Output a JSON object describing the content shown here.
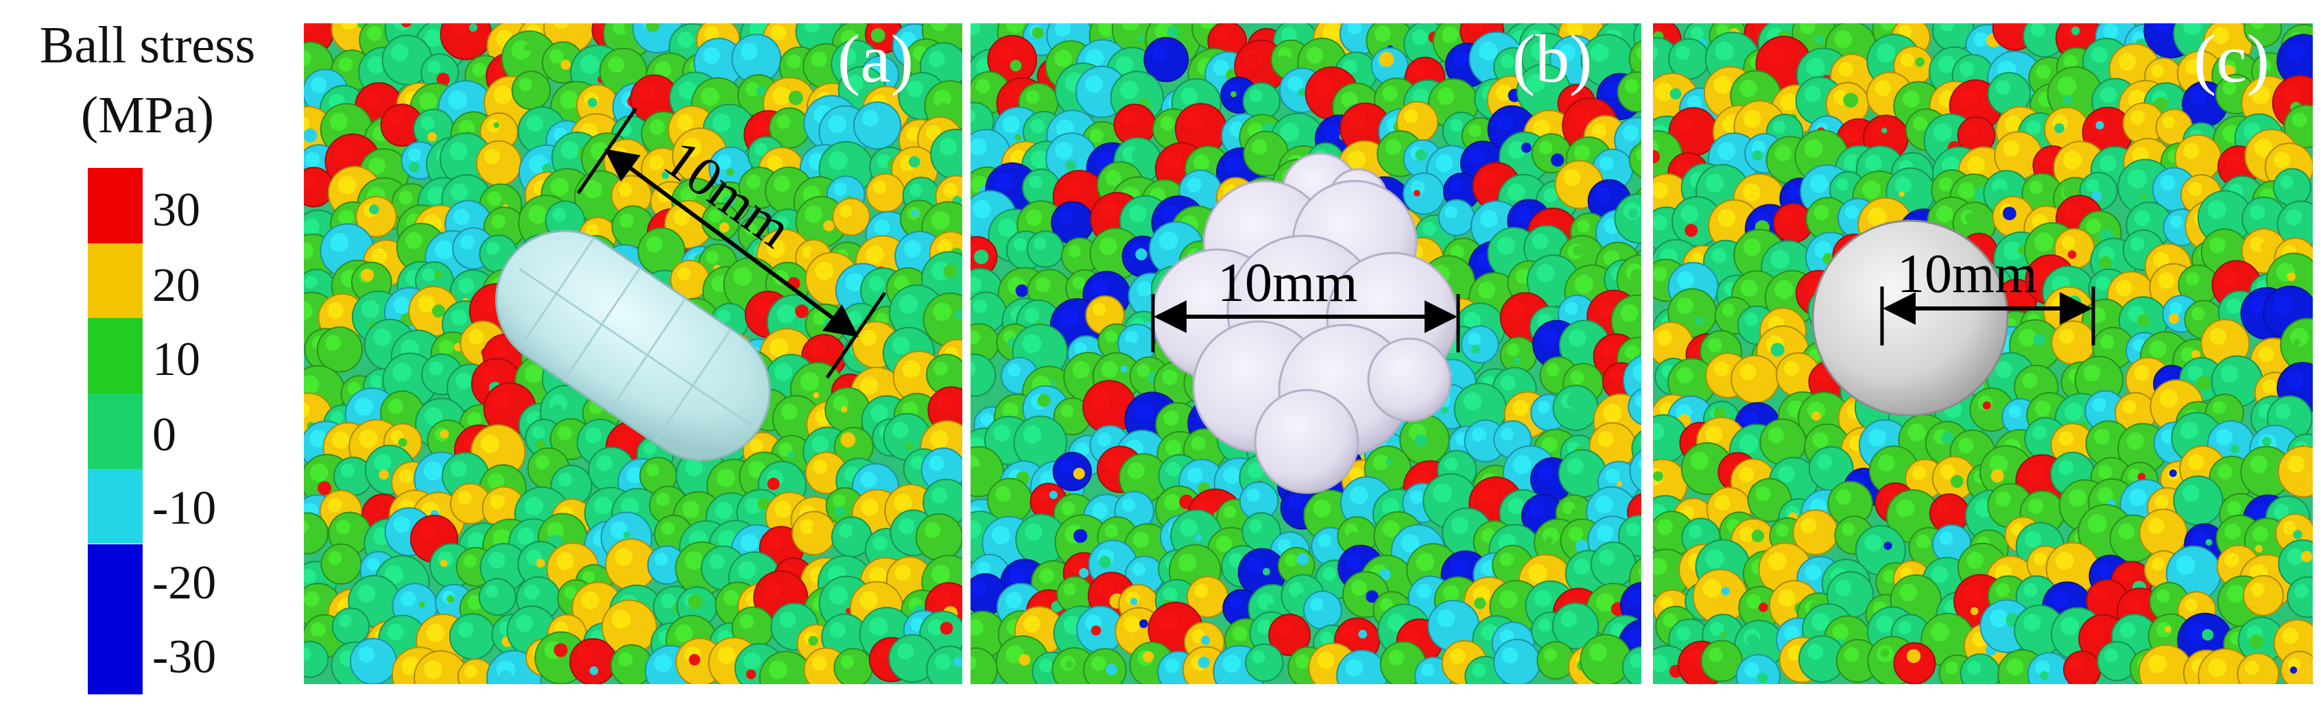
{
  "legend": {
    "title_line1": "Ball stress",
    "title_line2": "(MPa)",
    "ticks": [
      "30",
      "20",
      "10",
      "0",
      "-10",
      "-20",
      "-30"
    ],
    "colors": [
      "#ee0000",
      "#f5c400",
      "#22cc22",
      "#1ad46a",
      "#22d6e6",
      "#0000dd"
    ]
  },
  "panels": [
    {
      "label": "(a)",
      "dimension": "10mm",
      "particle": "elongated capsule cluster",
      "particle_color": "#bfe7ea"
    },
    {
      "label": "(b)",
      "dimension": "10mm",
      "particle": "irregular clump",
      "particle_color": "#e6e2f0"
    },
    {
      "label": "(c)",
      "dimension": "10mm",
      "particle": "sphere",
      "particle_color": "#d8d8d8"
    }
  ],
  "palette": {
    "red": "#ee1010",
    "yellow": "#f5c80a",
    "green": "#3fcc2a",
    "sea": "#1fd37a",
    "cyan": "#2ad2e8",
    "blue": "#0a1adc"
  }
}
